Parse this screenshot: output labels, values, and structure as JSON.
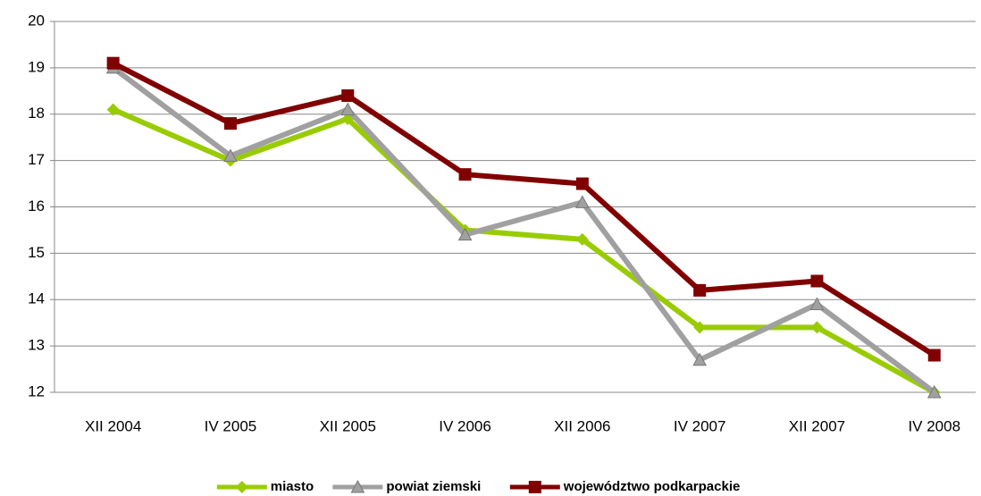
{
  "chart_data": {
    "type": "line",
    "categories": [
      "XII 2004",
      "IV 2005",
      "XII 2005",
      "IV 2006",
      "XII 2006",
      "IV 2007",
      "XII 2007",
      "IV 2008"
    ],
    "series": [
      {
        "name": "miasto",
        "color": "#99cc00",
        "marker": "diamond",
        "values": [
          18.1,
          17.0,
          17.9,
          15.5,
          15.3,
          13.4,
          13.4,
          12.0
        ]
      },
      {
        "name": "powiat ziemski",
        "color": "#a0a0a0",
        "marker": "triangle",
        "values": [
          19.0,
          17.1,
          18.1,
          15.4,
          16.1,
          12.7,
          13.9,
          12.0
        ]
      },
      {
        "name": "województwo podkarpackie",
        "color": "#800000",
        "marker": "square",
        "values": [
          19.1,
          17.8,
          18.4,
          16.7,
          16.5,
          14.2,
          14.4,
          12.8
        ]
      }
    ],
    "ylim": [
      12,
      20
    ],
    "yticks": [
      12,
      13,
      14,
      15,
      16,
      17,
      18,
      19,
      20
    ],
    "grid": true,
    "legend": "bottom"
  }
}
